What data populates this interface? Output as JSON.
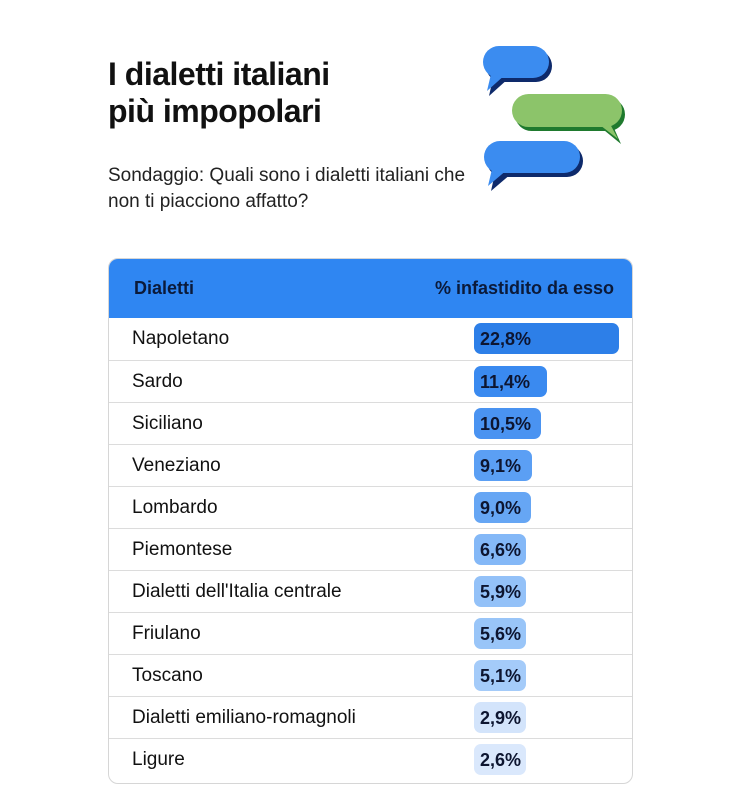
{
  "header": {
    "title_line1": "I dialetti italiani",
    "title_line2": "più impopolari",
    "subtitle": "Sondaggio: Quali sono i dialetti italiani che non ti piacciono affatto?"
  },
  "chart_data": {
    "type": "table",
    "title": "I dialetti italiani più impopolari",
    "subtitle": "Sondaggio: Quali sono i dialetti italiani che non ti piacciono affatto?",
    "columns": [
      "Dialetti",
      "% infastidito da esso"
    ],
    "rows": [
      {
        "name": "Napoletano",
        "value": 22.8,
        "label": "22,8%",
        "color": "#2d7fe8"
      },
      {
        "name": "Sardo",
        "value": 11.4,
        "label": "11,4%",
        "color": "#3a8af0"
      },
      {
        "name": "Siciliano",
        "value": 10.5,
        "label": "10,5%",
        "color": "#4a93f1"
      },
      {
        "name": "Veneziano",
        "value": 9.1,
        "label": "9,1%",
        "color": "#5b9ff4"
      },
      {
        "name": "Lombardo",
        "value": 9.0,
        "label": "9,0%",
        "color": "#66a6f4"
      },
      {
        "name": "Piemontese",
        "value": 6.6,
        "label": "6,6%",
        "color": "#84b8f7"
      },
      {
        "name": "Dialetti dell'Italia centrale",
        "value": 5.9,
        "label": "5,9%",
        "color": "#93c1f8"
      },
      {
        "name": "Friulano",
        "value": 5.6,
        "label": "5,6%",
        "color": "#99c5f8"
      },
      {
        "name": "Toscano",
        "value": 5.1,
        "label": "5,1%",
        "color": "#a4cbf9"
      },
      {
        "name": "Dialetti emiliano-romagnoli",
        "value": 2.9,
        "label": "2,9%",
        "color": "#d3e4fb"
      },
      {
        "name": "Ligure",
        "value": 2.6,
        "label": "2,6%",
        "color": "#dae8fc"
      }
    ]
  },
  "colors": {
    "header_bg": "#2f86f2",
    "bubble_blue": "#3b8cf0",
    "bubble_green": "#8cc46a"
  },
  "icons": [
    "chat-bubbles-icon"
  ]
}
